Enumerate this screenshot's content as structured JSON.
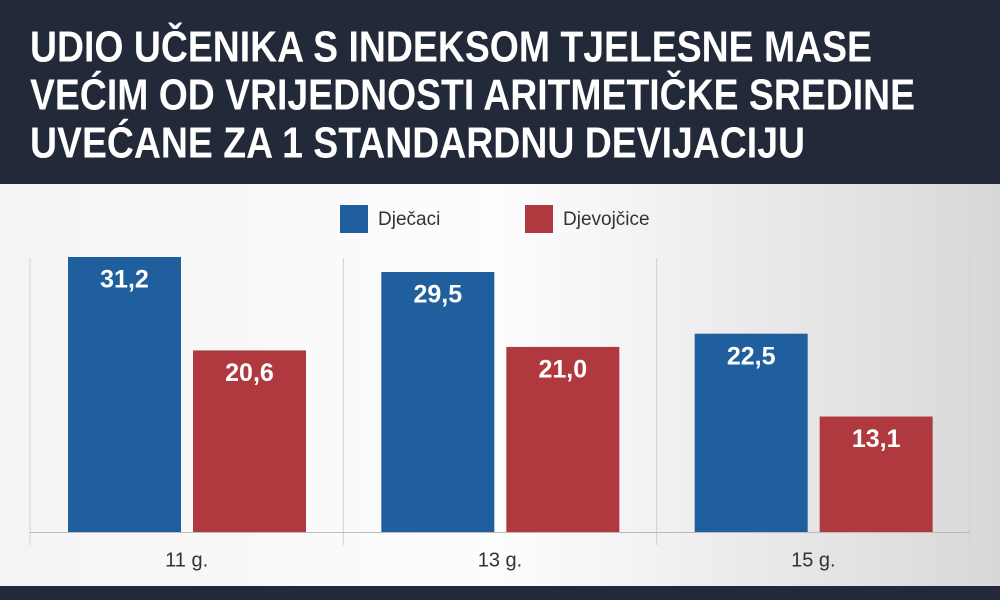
{
  "chart_data": {
    "type": "bar",
    "title": [
      "UDIO UČENIKA S INDEKSOM TJELESNE MASE",
      "VEĆIM OD VRIJEDNOSTI ARITMETIČKE SREDINE",
      "UVEĆANE ZA 1 STANDARDNU DEVIJACIJU"
    ],
    "categories": [
      "11 g.",
      "13 g.",
      "15 g."
    ],
    "series": [
      {
        "name": "Dječaci",
        "color": "#1f5f9e",
        "values": [
          31.2,
          29.5,
          22.5
        ],
        "value_labels": [
          "31,2",
          "29,5",
          "22,5"
        ]
      },
      {
        "name": "Djevojčice",
        "color": "#b0393f",
        "values": [
          20.6,
          21.0,
          13.1
        ],
        "value_labels": [
          "20,6",
          "21,0",
          "13,1"
        ]
      }
    ]
  }
}
